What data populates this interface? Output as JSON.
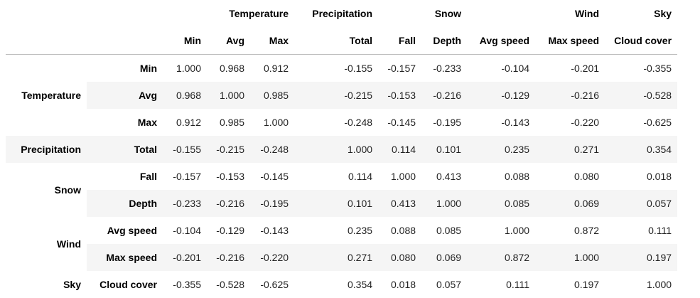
{
  "columns": {
    "level0": [
      {
        "label": "Temperature",
        "span": 3
      },
      {
        "label": "Precipitation",
        "span": 1
      },
      {
        "label": "Snow",
        "span": 2
      },
      {
        "label": "Wind",
        "span": 2
      },
      {
        "label": "Sky",
        "span": 1
      }
    ],
    "level1": [
      "Min",
      "Avg",
      "Max",
      "Total",
      "Fall",
      "Depth",
      "Avg speed",
      "Max speed",
      "Cloud cover"
    ]
  },
  "rows": [
    {
      "group": "Temperature",
      "label": "Min",
      "values": [
        "1.000",
        "0.968",
        "0.912",
        "-0.155",
        "-0.157",
        "-0.233",
        "-0.104",
        "-0.201",
        "-0.355"
      ]
    },
    {
      "group": "Temperature",
      "label": "Avg",
      "values": [
        "0.968",
        "1.000",
        "0.985",
        "-0.215",
        "-0.153",
        "-0.216",
        "-0.129",
        "-0.216",
        "-0.528"
      ]
    },
    {
      "group": "Temperature",
      "label": "Max",
      "values": [
        "0.912",
        "0.985",
        "1.000",
        "-0.248",
        "-0.145",
        "-0.195",
        "-0.143",
        "-0.220",
        "-0.625"
      ]
    },
    {
      "group": "Precipitation",
      "label": "Total",
      "values": [
        "-0.155",
        "-0.215",
        "-0.248",
        "1.000",
        "0.114",
        "0.101",
        "0.235",
        "0.271",
        "0.354"
      ]
    },
    {
      "group": "Snow",
      "label": "Fall",
      "values": [
        "-0.157",
        "-0.153",
        "-0.145",
        "0.114",
        "1.000",
        "0.413",
        "0.088",
        "0.080",
        "0.018"
      ]
    },
    {
      "group": "Snow",
      "label": "Depth",
      "values": [
        "-0.233",
        "-0.216",
        "-0.195",
        "0.101",
        "0.413",
        "1.000",
        "0.085",
        "0.069",
        "0.057"
      ]
    },
    {
      "group": "Wind",
      "label": "Avg speed",
      "values": [
        "-0.104",
        "-0.129",
        "-0.143",
        "0.235",
        "0.088",
        "0.085",
        "1.000",
        "0.872",
        "0.111"
      ]
    },
    {
      "group": "Wind",
      "label": "Max speed",
      "values": [
        "-0.201",
        "-0.216",
        "-0.220",
        "0.271",
        "0.080",
        "0.069",
        "0.872",
        "1.000",
        "0.197"
      ]
    },
    {
      "group": "Sky",
      "label": "Cloud cover",
      "values": [
        "-0.355",
        "-0.528",
        "-0.625",
        "0.354",
        "0.018",
        "0.057",
        "0.111",
        "0.197",
        "1.000"
      ]
    }
  ],
  "colors": {
    "stripe": "#f5f5f5",
    "border": "#bdbdbd",
    "text": "#000000"
  }
}
